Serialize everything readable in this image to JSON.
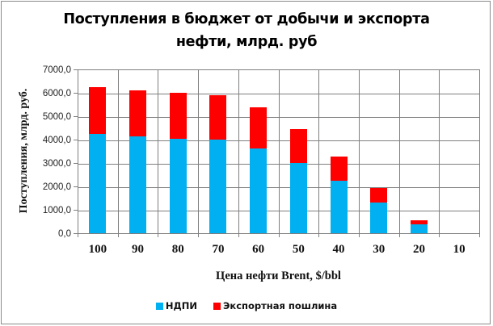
{
  "chart_data": {
    "type": "bar",
    "stacked": true,
    "title": "Поступления в бюджет от добычи и экспорта нефти, млрд. руб",
    "title_lines": [
      "Поступления в бюджет от добычи и экспорта",
      "нефти, млрд. руб"
    ],
    "xlabel": "Цена нефти Brent, $/bbl",
    "ylabel": "Поступления, млрд. руб.",
    "categories": [
      "100",
      "90",
      "80",
      "70",
      "60",
      "50",
      "40",
      "30",
      "20",
      "10"
    ],
    "series": [
      {
        "name": "НДПИ",
        "color": "#00B0F0",
        "values": [
          4250,
          4125,
          4045,
          4010,
          3630,
          3010,
          2230,
          1320,
          390,
          0
        ]
      },
      {
        "name": "Экспортная пошлина",
        "color": "#FF0000",
        "values": [
          2000,
          1965,
          1940,
          1895,
          1735,
          1450,
          1055,
          620,
          150,
          0
        ]
      }
    ],
    "yticks": [
      "0,0",
      "1000,0",
      "2000,0",
      "3000,0",
      "4000,0",
      "5000,0",
      "6000,0",
      "7000,0"
    ],
    "ylim": [
      0,
      7000
    ],
    "grid": true,
    "legend_position": "bottom"
  },
  "legend": [
    {
      "label": "НДПИ",
      "color": "#00B0F0"
    },
    {
      "label": "Экспортная пошлина",
      "color": "#FF0000"
    }
  ]
}
